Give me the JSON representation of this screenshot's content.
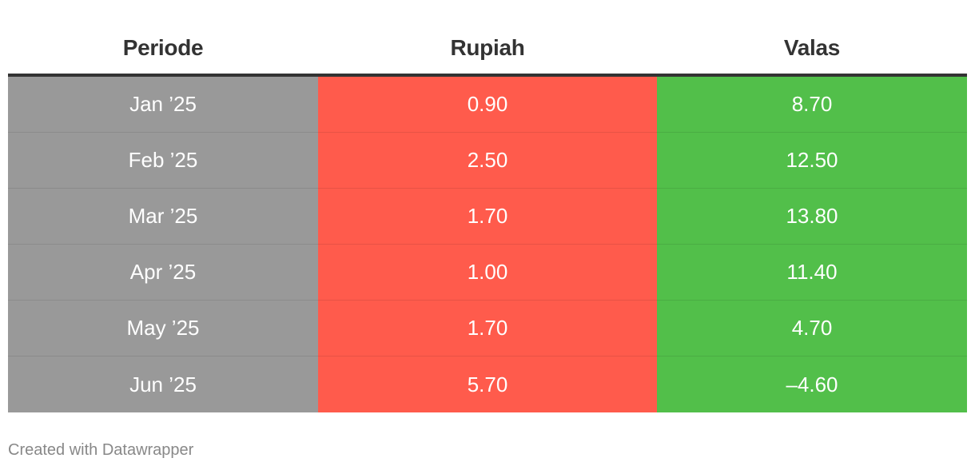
{
  "chart_data": {
    "type": "table",
    "columns": [
      "Periode",
      "Rupiah",
      "Valas"
    ],
    "rows": [
      {
        "periode": "Jan ’25",
        "rupiah": "0.90",
        "valas": "8.70"
      },
      {
        "periode": "Feb ’25",
        "rupiah": "2.50",
        "valas": "12.50"
      },
      {
        "periode": "Mar ’25",
        "rupiah": "1.70",
        "valas": "13.80"
      },
      {
        "periode": "Apr ’25",
        "rupiah": "1.00",
        "valas": "11.40"
      },
      {
        "periode": "May ’25",
        "rupiah": "1.70",
        "valas": "4.70"
      },
      {
        "periode": "Jun ’25",
        "rupiah": "5.70",
        "valas": "–4.60"
      }
    ],
    "column_colors": {
      "periode": "#999999",
      "rupiah": "#ff5b4c",
      "valas": "#52bf4a"
    }
  },
  "footer": {
    "credit": "Created with Datawrapper"
  }
}
